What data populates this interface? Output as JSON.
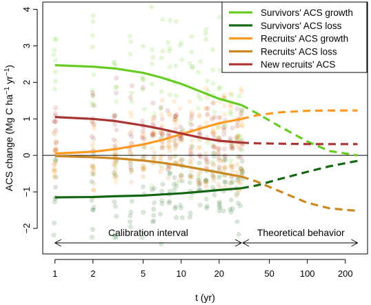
{
  "chart_data": {
    "type": "line",
    "xlabel": "t (yr)",
    "ylabel_main": "ACS change (Mg C ha",
    "ylabel_sup1": "−1",
    "ylabel_mid": " yr",
    "ylabel_sup2": "−1",
    "ylabel_end": ")",
    "x_scale": "log",
    "xlim": [
      0.8,
      300
    ],
    "ylim": [
      -2.7,
      4.2
    ],
    "x_ticks": [
      1,
      2,
      5,
      10,
      20,
      50,
      100,
      200
    ],
    "x_tick_labels": [
      "1",
      "2",
      "5",
      "10",
      "20",
      "50",
      "100",
      "200"
    ],
    "y_ticks": [
      -2,
      -1,
      0,
      1,
      2,
      3,
      4
    ],
    "y_tick_labels": [
      "−2",
      "−1",
      "0",
      "1",
      "2",
      "3",
      "4"
    ],
    "calibration_end": 30,
    "theory_end": 250,
    "legend_position": "top-right",
    "series": [
      {
        "name": "Survivors' ACS growth",
        "color": "#66cc22",
        "x": [
          1,
          2,
          3,
          5,
          7,
          10,
          15,
          20,
          30,
          40,
          60,
          100,
          150,
          250
        ],
        "values": [
          2.47,
          2.43,
          2.38,
          2.26,
          2.13,
          1.96,
          1.72,
          1.55,
          1.38,
          1.15,
          0.8,
          0.38,
          0.12,
          0.0
        ]
      },
      {
        "name": "Survivors' ACS loss",
        "color": "#146614",
        "x": [
          1,
          2,
          3,
          5,
          7,
          10,
          15,
          20,
          30,
          40,
          60,
          100,
          150,
          250
        ],
        "values": [
          -1.15,
          -1.14,
          -1.12,
          -1.1,
          -1.07,
          -1.04,
          -0.99,
          -0.95,
          -0.9,
          -0.82,
          -0.65,
          -0.45,
          -0.3,
          -0.15
        ]
      },
      {
        "name": "Recruits' ACS growth",
        "color": "#ff9922",
        "x": [
          1,
          2,
          3,
          5,
          7,
          10,
          15,
          20,
          30,
          40,
          60,
          100,
          150,
          250
        ],
        "values": [
          0.05,
          0.1,
          0.17,
          0.3,
          0.42,
          0.58,
          0.76,
          0.88,
          1.0,
          1.1,
          1.18,
          1.22,
          1.23,
          1.23
        ]
      },
      {
        "name": "Recruits' ACS loss",
        "color": "#cc8822",
        "x": [
          1,
          2,
          3,
          5,
          7,
          10,
          15,
          20,
          30,
          40,
          60,
          100,
          150,
          250
        ],
        "values": [
          -0.02,
          -0.05,
          -0.08,
          -0.14,
          -0.2,
          -0.28,
          -0.39,
          -0.47,
          -0.58,
          -0.72,
          -0.98,
          -1.3,
          -1.45,
          -1.52
        ]
      },
      {
        "name": "New recruits' ACS",
        "color": "#aa3333",
        "x": [
          1,
          2,
          3,
          5,
          7,
          10,
          15,
          20,
          30,
          40,
          60,
          100,
          150,
          250
        ],
        "values": [
          1.05,
          1.0,
          0.94,
          0.82,
          0.72,
          0.6,
          0.47,
          0.4,
          0.35,
          0.33,
          0.32,
          0.31,
          0.31,
          0.31
        ]
      }
    ],
    "annotations": {
      "calibration": "Calibration interval",
      "theoretical": "Theoretical behavior"
    },
    "point_colors": [
      "#66cc22",
      "#146614",
      "#ff9922",
      "#cc8822",
      "#aa3333"
    ]
  }
}
